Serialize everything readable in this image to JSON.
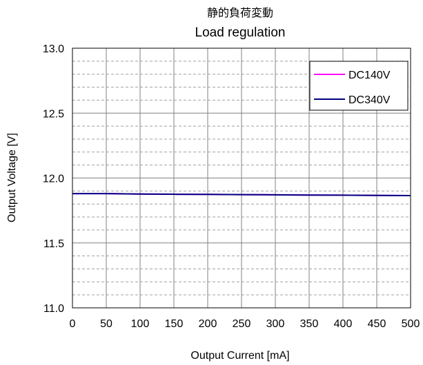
{
  "chart_data": {
    "type": "line",
    "title_jp": "静的負荷変動",
    "title": "Load regulation",
    "xlabel": "Output Current [mA]",
    "ylabel": "Output Voltage [V]",
    "xlim": [
      0,
      500
    ],
    "ylim": [
      11.0,
      13.0
    ],
    "xticks": [
      0,
      50,
      100,
      150,
      200,
      250,
      300,
      350,
      400,
      450,
      500
    ],
    "yticks": [
      "11.0",
      "11.5",
      "12.0",
      "12.5",
      "13.0"
    ],
    "grid": {
      "major_x": true,
      "major_y": true,
      "minor_y": true
    },
    "legend_position": "top-right",
    "series": [
      {
        "name": "DC140V",
        "color": "#ff00ff",
        "x": [
          0,
          50,
          100,
          150,
          200,
          250,
          300,
          350,
          400,
          450,
          500
        ],
        "y": [
          11.88,
          11.88,
          11.877,
          11.875,
          11.874,
          11.872,
          11.871,
          11.869,
          11.868,
          11.866,
          11.865
        ]
      },
      {
        "name": "DC340V",
        "color": "#000080",
        "x": [
          0,
          50,
          100,
          150,
          200,
          250,
          300,
          350,
          400,
          450,
          500
        ],
        "y": [
          11.88,
          11.88,
          11.877,
          11.875,
          11.874,
          11.872,
          11.871,
          11.869,
          11.868,
          11.866,
          11.865
        ]
      }
    ]
  }
}
